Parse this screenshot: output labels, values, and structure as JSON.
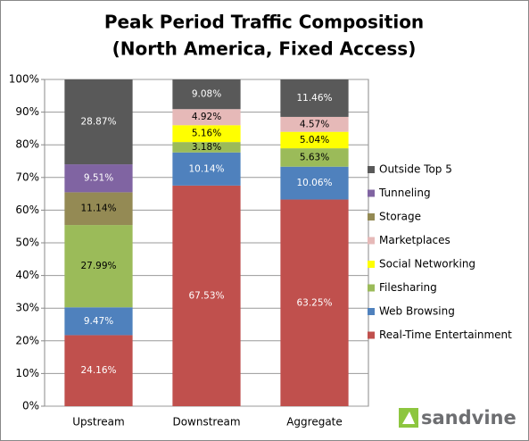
{
  "chart_data": {
    "type": "bar",
    "stacking": "percent",
    "title": "Peak Period Traffic Composition",
    "subtitle": "(North America, Fixed Access)",
    "categories": [
      "Upstream",
      "Downstream",
      "Aggregate"
    ],
    "series": [
      {
        "name": "Real-Time Entertainment",
        "color": "#c0504d",
        "values": [
          24.16,
          67.53,
          63.25
        ],
        "value_labels": [
          "24.16%",
          "67.53%",
          "63.25%"
        ]
      },
      {
        "name": "Web Browsing",
        "color": "#4f81bd",
        "values": [
          9.47,
          10.14,
          10.06
        ],
        "value_labels": [
          "9.47%",
          "10.14%",
          "10.06%"
        ]
      },
      {
        "name": "Filesharing",
        "color": "#9bbb59",
        "values": [
          27.99,
          3.18,
          5.63
        ],
        "value_labels": [
          "27.99%",
          "3.18%",
          "5.63%"
        ]
      },
      {
        "name": "Social Networking",
        "color": "#ffff00",
        "values": [
          null,
          5.16,
          5.04
        ],
        "value_labels": [
          null,
          "5.16%",
          "5.04%"
        ]
      },
      {
        "name": "Marketplaces",
        "color": "#e6b9b8",
        "values": [
          null,
          4.92,
          4.57
        ],
        "value_labels": [
          null,
          "4.92%",
          "4.57%"
        ]
      },
      {
        "name": "Storage",
        "color": "#948a54",
        "values": [
          11.14,
          null,
          null
        ],
        "value_labels": [
          "11.14%",
          null,
          null
        ]
      },
      {
        "name": "Tunneling",
        "color": "#8064a2",
        "values": [
          9.51,
          null,
          null
        ],
        "value_labels": [
          "9.51%",
          null,
          null
        ]
      },
      {
        "name": "Outside Top 5",
        "color": "#595959",
        "values": [
          28.87,
          9.08,
          11.46
        ],
        "value_labels": [
          "28.87%",
          "9.08%",
          "11.46%"
        ]
      }
    ],
    "ylim": [
      0,
      100
    ],
    "yticks": [
      {
        "value": 0,
        "label": "0%"
      },
      {
        "value": 10,
        "label": "10%"
      },
      {
        "value": 20,
        "label": "20%"
      },
      {
        "value": 30,
        "label": "30%"
      },
      {
        "value": 40,
        "label": "40%"
      },
      {
        "value": 50,
        "label": "50%"
      },
      {
        "value": 60,
        "label": "60%"
      },
      {
        "value": 70,
        "label": "70%"
      },
      {
        "value": 80,
        "label": "80%"
      },
      {
        "value": 90,
        "label": "90%"
      },
      {
        "value": 100,
        "label": "100%"
      }
    ],
    "grid": true,
    "legend": "right",
    "logo": "sandvine"
  }
}
